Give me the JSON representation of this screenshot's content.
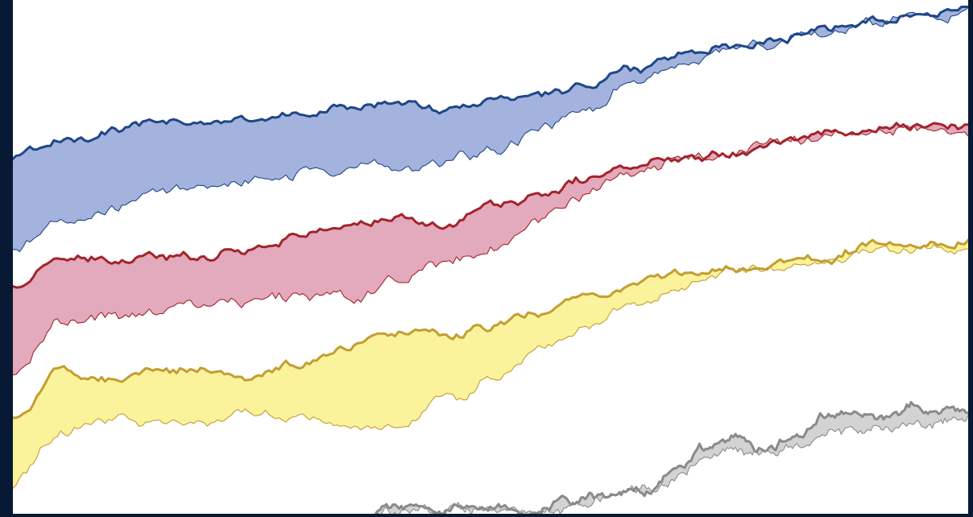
{
  "chart_data": {
    "type": "area",
    "title": "",
    "xlabel": "",
    "ylabel": "",
    "grid": false,
    "legend": "none",
    "xlim": [
      0,
      100
    ],
    "ylim": [
      0,
      100
    ],
    "series": [
      {
        "color": "#1f4788",
        "fill": "#a3b3dd",
        "x": [
          0,
          5,
          10,
          15,
          20,
          25,
          30,
          35,
          40,
          45,
          50,
          55,
          60,
          65,
          70,
          75,
          80,
          85,
          90,
          95,
          100
        ],
        "upper": [
          69.4,
          72.8,
          74.6,
          75.9,
          76.3,
          76.9,
          77.8,
          79.2,
          80.1,
          78.7,
          80.4,
          81.8,
          83.4,
          86.9,
          89.4,
          91.2,
          92.4,
          94.3,
          96.2,
          97.6,
          98.1
        ],
        "lower": [
          51.4,
          57.0,
          59.7,
          62.5,
          63.5,
          64.9,
          65.9,
          66.8,
          67.4,
          68.6,
          70.7,
          74.3,
          78.8,
          84.4,
          88.0,
          90.8,
          91.8,
          93.8,
          95.9,
          97.0,
          98.0
        ]
      },
      {
        "color": "#a3242b",
        "fill": "#e3a9bc",
        "x": [
          0,
          5,
          10,
          15,
          20,
          25,
          30,
          35,
          40,
          45,
          50,
          55,
          60,
          65,
          70,
          75,
          80,
          85,
          90,
          95,
          100
        ],
        "upper": [
          44.2,
          49.5,
          48.9,
          49.8,
          50.3,
          52.0,
          54.2,
          56.1,
          57.3,
          56.2,
          60.2,
          61.4,
          65.1,
          67.7,
          69.7,
          70.7,
          72.5,
          74.1,
          75.0,
          75.8,
          75.2
        ],
        "lower": [
          27.3,
          36.3,
          38.2,
          39.3,
          40.6,
          41.6,
          42.3,
          42.1,
          44.6,
          48.6,
          52.3,
          57.1,
          62.2,
          66.3,
          68.8,
          70.3,
          72.2,
          73.5,
          74.3,
          75.2,
          74.8
        ]
      },
      {
        "color": "#c39e32",
        "fill": "#fbf29c",
        "x": [
          0,
          5,
          10,
          15,
          20,
          25,
          30,
          35,
          40,
          45,
          50,
          55,
          60,
          65,
          70,
          75,
          80,
          85,
          90,
          95,
          100
        ],
        "upper": [
          18.9,
          27.4,
          26.5,
          27.5,
          28.3,
          26.7,
          29.3,
          32.3,
          35.0,
          34.7,
          36.7,
          39.2,
          42.8,
          44.2,
          46.4,
          48.1,
          49.1,
          49.4,
          52.6,
          51.9,
          52.7
        ],
        "lower": [
          5.5,
          15.8,
          18.7,
          17.0,
          17.1,
          19.7,
          18.1,
          17.4,
          16.6,
          21.2,
          26.3,
          31.8,
          36.8,
          40.4,
          44.0,
          46.8,
          47.7,
          48.6,
          51.2,
          51.0,
          51.6
        ]
      },
      {
        "color": "#8a8a8a",
        "fill": "#d3d3d3",
        "x": [
          38,
          42,
          45,
          47,
          50,
          55,
          58,
          62,
          66,
          70,
          72,
          75,
          78,
          82,
          85,
          88,
          91,
          94,
          97,
          100
        ],
        "upper": [
          0.6,
          1.2,
          0.4,
          1.2,
          1.8,
          0.3,
          2.9,
          3.6,
          4.6,
          9.4,
          12.7,
          14.8,
          12.6,
          15.2,
          19.2,
          19.7,
          18.0,
          20.9,
          19.6,
          20.2
        ],
        "lower": [
          0.0,
          0.2,
          0.0,
          0.5,
          0.2,
          0.1,
          1.1,
          3.2,
          4.2,
          7.8,
          10.3,
          12.4,
          11.7,
          13.0,
          15.0,
          16.6,
          15.9,
          17.3,
          17.9,
          19.1
        ]
      }
    ]
  }
}
